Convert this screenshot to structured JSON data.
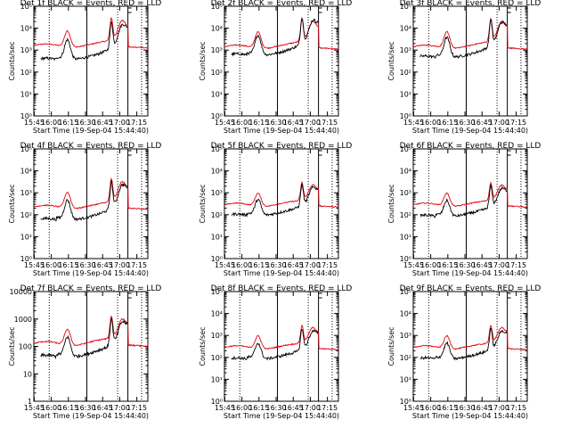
{
  "chart_data": {
    "type": "line",
    "xlabel": "Start Time (19-Sep-04 15:44:40)",
    "ylabel": "Counts/sec",
    "x_tick_labels": [
      "15:45",
      "16:00",
      "16:15",
      "16:30",
      "16:45",
      "17:00",
      "17:15"
    ],
    "x_ticks_minutes": [
      0.33,
      15.33,
      30.33,
      45.33,
      60.33,
      75.33,
      90.33
    ],
    "xlim_minutes": [
      0,
      100
    ],
    "yscale": "log",
    "series_colors": {
      "events": "#000000",
      "lld": "#e8000b"
    },
    "dotted_lines_minutes": [
      13.5,
      73.5,
      94.5
    ],
    "solid_lines_minutes": [
      46.5,
      82.5
    ],
    "panels": [
      {
        "title": "Det 1f BLACK = Events, RED = LLD",
        "ylim_exp": [
          0,
          5
        ],
        "ytick_style": "exp",
        "events_level": 2.65,
        "lld_level": 3.2,
        "flare_gain": 1.0
      },
      {
        "title": "Det 2f BLACK = Events, RED = LLD",
        "ylim_exp": [
          0,
          5
        ],
        "ytick_style": "exp",
        "events_level": 2.85,
        "lld_level": 3.15,
        "flare_gain": 1.0
      },
      {
        "title": "Det 3f BLACK = Events, RED = LLD",
        "ylim_exp": [
          0,
          5
        ],
        "ytick_style": "exp",
        "events_level": 2.75,
        "lld_level": 3.15,
        "flare_gain": 1.0
      },
      {
        "title": "Det 4f BLACK = Events, RED = LLD",
        "ylim_exp": [
          0,
          5
        ],
        "ytick_style": "exp",
        "events_level": 1.85,
        "lld_level": 2.35,
        "flare_gain": 1.0
      },
      {
        "title": "Det 5f BLACK = Events, RED = LLD",
        "ylim_exp": [
          0,
          5
        ],
        "ytick_style": "exp",
        "events_level": 2.05,
        "lld_level": 2.45,
        "flare_gain": 0.8
      },
      {
        "title": "Det 6f BLACK = Events, RED = LLD",
        "ylim_exp": [
          0,
          5
        ],
        "ytick_style": "exp",
        "events_level": 2.0,
        "lld_level": 2.45,
        "flare_gain": 0.8
      },
      {
        "title": "Det 7f BLACK = Events, RED = LLD",
        "ylim_exp": [
          0,
          4
        ],
        "ytick_style": "plain",
        "events_level": 1.7,
        "lld_level": 2.1,
        "flare_gain": 0.8
      },
      {
        "title": "Det 8f BLACK = Events, RED = LLD",
        "ylim_exp": [
          0,
          5
        ],
        "ytick_style": "exp",
        "events_level": 2.0,
        "lld_level": 2.45,
        "flare_gain": 0.8
      },
      {
        "title": "Det 9f BLACK = Events, RED = LLD",
        "ylim_exp": [
          0,
          5
        ],
        "ytick_style": "exp",
        "events_level": 2.0,
        "lld_level": 2.45,
        "flare_gain": 0.8
      }
    ]
  }
}
